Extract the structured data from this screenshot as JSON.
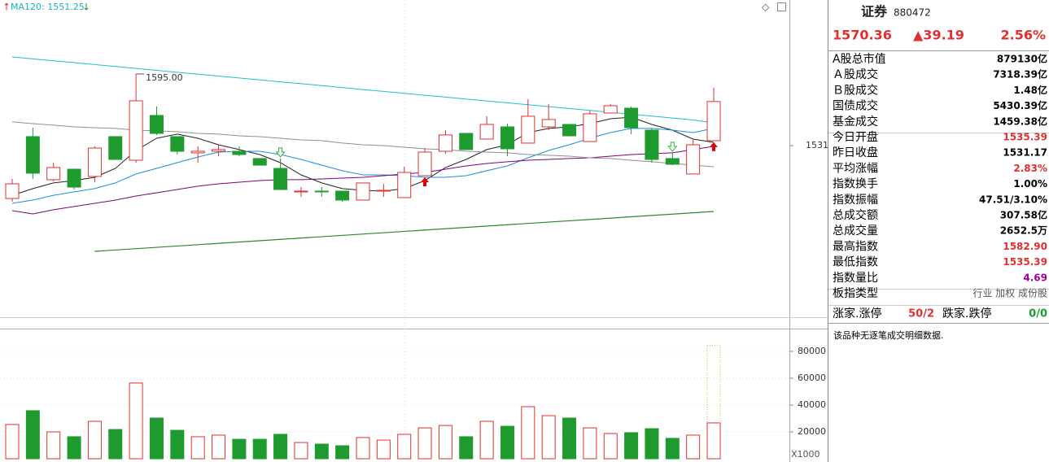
{
  "chart_data": {
    "type": "candlestick",
    "indicator_label": "MA120: 1551.25",
    "high_label": "1595.00",
    "ylim": [
      1377.6,
      1661.1
    ],
    "yticks": [
      1531
    ],
    "up_color": "#e03030",
    "down_color": "#1f9a2e",
    "open": [
      1483.7,
      1539.0,
      1500.5,
      1509.9,
      1503.4,
      1539.0,
      1517.9,
      1557.9,
      1539.0,
      1524.5,
      1525.9,
      1525.9,
      1519.4,
      1510.6,
      1489.6,
      1490.3,
      1490.3,
      1482.3,
      1490.3,
      1484.5,
      1504.1,
      1525.9,
      1541.9,
      1536.8,
      1547.7,
      1533.2,
      1547.7,
      1549.9,
      1534.6,
      1560.1,
      1564.4,
      1544.8,
      1519.4,
      1505.6,
      1535.39
    ],
    "close": [
      1496.8,
      1506.3,
      1511.4,
      1493.9,
      1528.8,
      1518.6,
      1571.0,
      1541.9,
      1525.9,
      1525.9,
      1527.4,
      1523.0,
      1513.5,
      1491.7,
      1490.3,
      1489.6,
      1482.3,
      1497.6,
      1491.0,
      1507.0,
      1525.2,
      1540.5,
      1527.4,
      1549.9,
      1528.1,
      1557.2,
      1554.3,
      1539.7,
      1559.4,
      1566.6,
      1547.0,
      1518.6,
      1514.3,
      1531.7,
      1570.36
    ],
    "high": [
      1501.2,
      1547.0,
      1515.7,
      1509.9,
      1530.3,
      1539.0,
      1595.0,
      1565.9,
      1539.0,
      1530.3,
      1531.7,
      1530.3,
      1519.4,
      1519.4,
      1493.9,
      1493.9,
      1490.3,
      1497.6,
      1496.8,
      1512.1,
      1528.8,
      1544.8,
      1541.9,
      1557.2,
      1550.6,
      1572.4,
      1568.1,
      1549.9,
      1562.3,
      1568.1,
      1565.9,
      1546.3,
      1524.5,
      1536.1,
      1582.9
    ],
    "low": [
      1480.8,
      1501.2,
      1499.0,
      1491.7,
      1498.3,
      1518.6,
      1515.7,
      1540.5,
      1523.0,
      1515.7,
      1521.5,
      1521.5,
      1513.5,
      1491.7,
      1485.2,
      1485.2,
      1480.8,
      1482.3,
      1485.2,
      1484.5,
      1504.1,
      1523.7,
      1527.4,
      1536.8,
      1521.5,
      1533.2,
      1544.8,
      1539.7,
      1534.6,
      1560.1,
      1541.2,
      1515.7,
      1513.5,
      1505.6,
      1535.39
    ],
    "series": [
      {
        "color": "#222222",
        "values": [
          1486.6,
          1492.5,
          1497.6,
          1499.7,
          1502.6,
          1510.6,
          1526.6,
          1537.5,
          1541.2,
          1537.5,
          1531.7,
          1527.4,
          1523.0,
          1515.7,
          1504.8,
          1497.6,
          1492.5,
          1491.0,
          1490.3,
          1492.5,
          1499.7,
          1511.4,
          1518.6,
          1527.4,
          1531.7,
          1542.6,
          1546.3,
          1547.7,
          1550.6,
          1555.0,
          1556.4,
          1549.9,
          1544.8,
          1536.8,
          1533.9
        ]
      },
      {
        "color": "#1a8fe0",
        "values": [
          1479.4,
          1482.3,
          1486.6,
          1489.6,
          1492.5,
          1497.6,
          1505.6,
          1510.6,
          1515.7,
          1520.8,
          1525.2,
          1525.9,
          1525.9,
          1523.0,
          1518.6,
          1513.5,
          1508.5,
          1504.8,
          1504.8,
          1504.1,
          1502.6,
          1502.6,
          1504.1,
          1508.5,
          1512.8,
          1520.1,
          1526.6,
          1531.7,
          1537.5,
          1542.6,
          1546.3,
          1546.3,
          1544.8,
          1542.6,
          1546.3
        ]
      },
      {
        "color": "#800080",
        "values": [
          1472.8,
          1469.9,
          1473.6,
          1476.5,
          1479.4,
          1482.3,
          1485.9,
          1488.8,
          1491.7,
          1494.7,
          1496.8,
          1498.3,
          1499.7,
          1500.5,
          1500.5,
          1501.2,
          1501.9,
          1502.6,
          1504.1,
          1505.6,
          1507.0,
          1509.9,
          1512.8,
          1515.0,
          1516.5,
          1517.9,
          1518.6,
          1519.4,
          1520.1,
          1521.5,
          1523.0,
          1523.7,
          1524.5,
          1527.4,
          1530.3
        ]
      },
      {
        "color": "#909090",
        "values": [
          1552.1,
          1550.6,
          1549.2,
          1547.7,
          1547.0,
          1546.3,
          1544.8,
          1544.1,
          1543.4,
          1541.9,
          1541.2,
          1539.7,
          1539.0,
          1537.5,
          1536.1,
          1535.4,
          1533.2,
          1531.7,
          1531.0,
          1529.5,
          1528.1,
          1527.4,
          1525.9,
          1525.2,
          1524.5,
          1523.0,
          1522.3,
          1521.5,
          1520.1,
          1519.4,
          1517.9,
          1516.5,
          1515.0,
          1513.5,
          1512.1
        ]
      },
      {
        "color": "#20c0c8",
        "values": [
          1610.2,
          1608.5,
          1606.8,
          1605.1,
          1603.4,
          1601.7,
          1600.0,
          1598.2,
          1596.5,
          1594.8,
          1593.1,
          1591.4,
          1589.7,
          1588.0,
          1586.3,
          1584.6,
          1582.9,
          1581.1,
          1579.4,
          1577.7,
          1576.0,
          1574.3,
          1572.6,
          1570.9,
          1569.2,
          1567.5,
          1565.8,
          1564.1,
          1562.4,
          1560.7,
          1559.0,
          1557.3,
          1555.6,
          1553.9,
          1551.3
        ]
      }
    ],
    "trend_line": {
      "color": "#2a8a2a",
      "values": [
        1436.5,
        1472.1
      ]
    },
    "volume": {
      "ylim": [
        0,
        96350
      ],
      "yticks": [
        80000,
        60000,
        40000,
        20000
      ],
      "unit": "X1000",
      "values": [
        25500,
        35800,
        20000,
        16400,
        27900,
        21800,
        56400,
        30300,
        21200,
        16400,
        17600,
        14500,
        14500,
        18200,
        12100,
        10900,
        9700,
        15800,
        13900,
        18200,
        23000,
        24800,
        16400,
        27900,
        24200,
        38800,
        32100,
        30300,
        23000,
        18800,
        19400,
        22400,
        15200,
        17600,
        26700
      ]
    }
  },
  "quote": {
    "name": "证券",
    "code": "880472",
    "price": "1570.36",
    "change": "▲39.19",
    "pct": "2.56%",
    "rows": [
      {
        "label": "A股总市值",
        "value": "879130亿",
        "color": "#000000"
      },
      {
        "label": "Ａ股成交",
        "value": "7318.39亿",
        "color": "#000000"
      },
      {
        "label": "Ｂ股成交",
        "value": "1.48亿",
        "color": "#000000"
      },
      {
        "label": "国债成交",
        "value": "5430.39亿",
        "color": "#000000"
      },
      {
        "label": "基金成交",
        "value": "1459.38亿",
        "color": "#000000"
      },
      {
        "label": "今日开盘",
        "value": "1535.39",
        "color": "#e03030"
      },
      {
        "label": "昨日收盘",
        "value": "1531.17",
        "color": "#000000"
      },
      {
        "label": "平均涨幅",
        "value": "2.83%",
        "color": "#e03030"
      },
      {
        "label": "指数换手",
        "value": "1.00%",
        "color": "#000000"
      },
      {
        "label": "指数振幅",
        "value": "47.51/3.10%",
        "color": "#000000"
      },
      {
        "label": "总成交额",
        "value": "307.58亿",
        "color": "#000000"
      },
      {
        "label": "总成交量",
        "value": "2652.5万",
        "color": "#000000"
      },
      {
        "label": "最高指数",
        "value": "1582.90",
        "color": "#e03030"
      },
      {
        "label": "最低指数",
        "value": "1535.39",
        "color": "#e03030"
      },
      {
        "label": "指数量比",
        "value": "4.69",
        "color": "#a000a0"
      },
      {
        "label": "板指类型",
        "value": "行业 加权 成份股",
        "color": "#555555"
      }
    ],
    "breadth": {
      "up_label": "涨家.涨停",
      "up_value": "50/2",
      "down_label": "跌家.跌停",
      "down_value": "0/0"
    },
    "note": "该品种无逐笔成交明细数据."
  }
}
